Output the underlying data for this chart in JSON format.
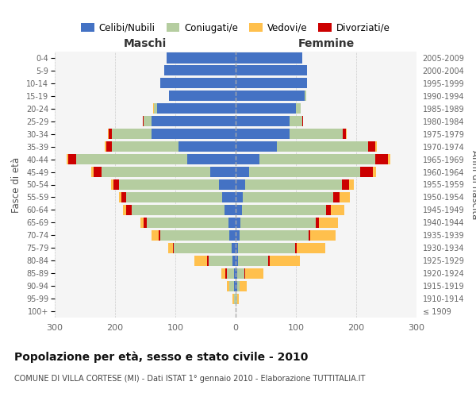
{
  "age_groups": [
    "100+",
    "95-99",
    "90-94",
    "85-89",
    "80-84",
    "75-79",
    "70-74",
    "65-69",
    "60-64",
    "55-59",
    "50-54",
    "45-49",
    "40-44",
    "35-39",
    "30-34",
    "25-29",
    "20-24",
    "15-19",
    "10-14",
    "5-9",
    "0-4"
  ],
  "birth_years": [
    "≤ 1909",
    "1910-1914",
    "1915-1919",
    "1920-1924",
    "1925-1929",
    "1930-1934",
    "1935-1939",
    "1940-1944",
    "1945-1949",
    "1950-1954",
    "1955-1959",
    "1960-1964",
    "1965-1969",
    "1970-1974",
    "1975-1979",
    "1980-1984",
    "1985-1989",
    "1990-1994",
    "1995-1999",
    "2000-2004",
    "2005-2009"
  ],
  "males": {
    "celibe": [
      0,
      0,
      2,
      3,
      5,
      7,
      10,
      12,
      18,
      22,
      28,
      42,
      80,
      95,
      140,
      140,
      130,
      110,
      125,
      118,
      115
    ],
    "coniugato": [
      0,
      3,
      8,
      12,
      40,
      95,
      115,
      135,
      155,
      160,
      165,
      180,
      185,
      110,
      65,
      12,
      6,
      1,
      0,
      0,
      0
    ],
    "vedovo": [
      0,
      2,
      4,
      7,
      22,
      8,
      12,
      6,
      6,
      4,
      4,
      4,
      3,
      2,
      2,
      0,
      1,
      0,
      0,
      0,
      0
    ],
    "divorziato": [
      0,
      0,
      0,
      2,
      2,
      2,
      2,
      5,
      8,
      8,
      10,
      14,
      12,
      10,
      5,
      2,
      0,
      0,
      0,
      0,
      0
    ]
  },
  "females": {
    "nubile": [
      0,
      0,
      2,
      2,
      4,
      4,
      6,
      8,
      10,
      12,
      16,
      22,
      40,
      68,
      90,
      90,
      100,
      115,
      118,
      118,
      110
    ],
    "coniugata": [
      0,
      2,
      4,
      12,
      50,
      95,
      115,
      125,
      140,
      150,
      160,
      185,
      192,
      152,
      88,
      20,
      8,
      2,
      0,
      0,
      0
    ],
    "vedova": [
      0,
      3,
      12,
      30,
      50,
      48,
      42,
      32,
      22,
      18,
      8,
      6,
      4,
      2,
      1,
      0,
      0,
      0,
      0,
      0,
      0
    ],
    "divorziata": [
      0,
      0,
      0,
      2,
      2,
      2,
      3,
      5,
      8,
      10,
      12,
      20,
      20,
      12,
      5,
      2,
      0,
      0,
      0,
      0,
      0
    ]
  },
  "colors": {
    "celibe": "#4472c4",
    "coniugato": "#b5cda0",
    "vedovo": "#ffc04d",
    "divorziato": "#cc0000"
  },
  "title": "Popolazione per età, sesso e stato civile - 2010",
  "subtitle": "COMUNE DI VILLA CORTESE (MI) - Dati ISTAT 1° gennaio 2010 - Elaborazione TUTTITALIA.IT",
  "label_maschi": "Maschi",
  "label_femmine": "Femmine",
  "ylabel_left": "Fasce di età",
  "ylabel_right": "Anni di nascita",
  "xlim": 300,
  "bg_color": "#f5f5f5",
  "legend_labels": [
    "Celibi/Nubili",
    "Coniugati/e",
    "Vedovi/e",
    "Divorziati/e"
  ]
}
